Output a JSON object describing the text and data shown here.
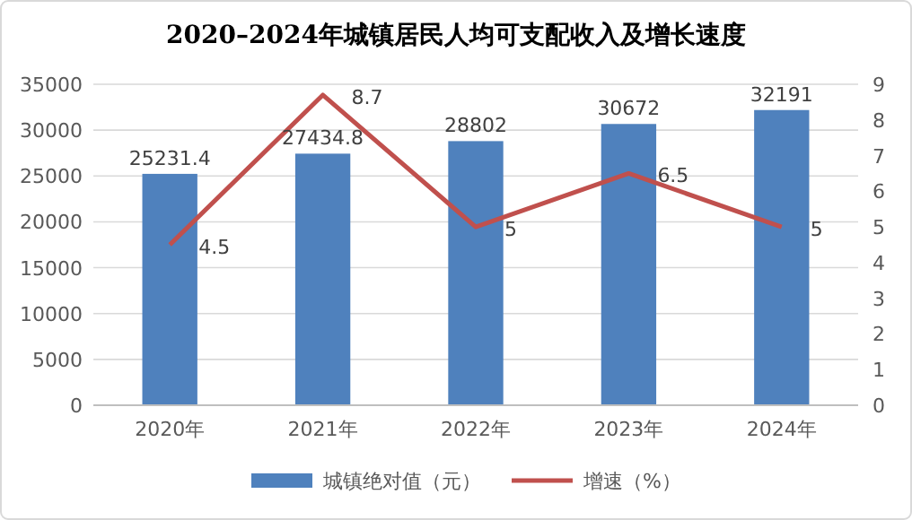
{
  "chart_data": {
    "type": "bar",
    "title": "2020–2024年城镇居民人均可支配收入及增长速度",
    "categories": [
      "2020年",
      "2021年",
      "2022年",
      "2023年",
      "2024年"
    ],
    "series": [
      {
        "name": "城镇绝对值（元）",
        "color": "#4f81bd",
        "values": [
          25231.4,
          27434.8,
          28802,
          30672,
          32191
        ]
      },
      {
        "name": "增速（%）",
        "type": "line",
        "axis": "y2",
        "color": "#c0504d",
        "values": [
          4.5,
          8.7,
          5,
          6.5,
          5
        ]
      }
    ],
    "ylim": [
      0,
      35000
    ],
    "yticks": [
      0,
      5000,
      10000,
      15000,
      20000,
      25000,
      30000,
      35000
    ],
    "y2lim": [
      0,
      9
    ],
    "y2ticks": [
      0,
      1,
      2,
      3,
      4,
      5,
      6,
      7,
      8,
      9
    ],
    "grid": "y",
    "legend": "bottom",
    "data_labels": true,
    "marker": "none",
    "line_style": "solid"
  }
}
